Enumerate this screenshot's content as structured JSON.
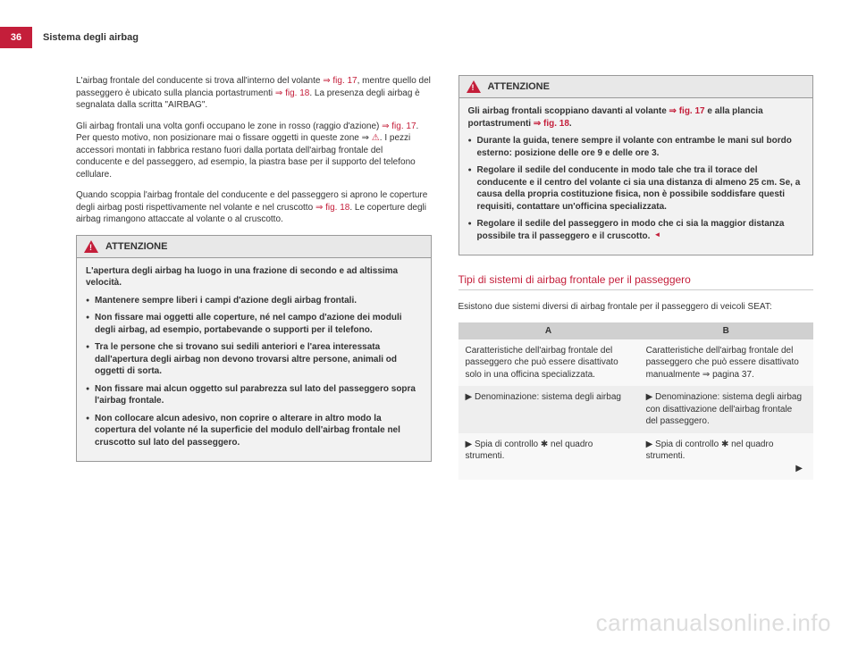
{
  "header": {
    "page_number": "36",
    "chapter_title": "Sistema degli airbag"
  },
  "column_left": {
    "para1_a": "L'airbag frontale del conducente si trova all'interno del volante ",
    "para1_ref1": "⇒ fig. 17",
    "para1_b": ", mentre quello del passeggero è ubicato sulla plancia portastrumenti ",
    "para1_ref2": "⇒ fig. 18",
    "para1_c": ". La presenza degli airbag è segnalata dalla scritta \"AIRBAG\".",
    "para2_a": "Gli airbag frontali una volta gonfi occupano le zone in rosso (raggio d'azione) ",
    "para2_ref1": "⇒ fig. 17",
    "para2_b": ". Per questo motivo, non posizionare mai o fissare oggetti in queste zone ⇒ ",
    "para2_c": ". I pezzi accessori montati in fabbrica restano fuori dalla portata dell'airbag frontale del conducente e del passeggero, ad esempio, la piastra base per il supporto del telefono cellulare.",
    "para3_a": "Quando scoppia l'airbag frontale del conducente e del passeggero si aprono le coperture degli airbag posti rispettivamente nel volante e nel cruscotto ",
    "para3_ref1": "⇒ fig. 18",
    "para3_b": ". Le coperture degli airbag rimangono attaccate al volante o al cruscotto.",
    "warning1": {
      "title": "ATTENZIONE",
      "intro": "L'apertura degli airbag ha luogo in una frazione di secondo e ad altissima velocità.",
      "bullets": [
        "Mantenere sempre liberi i campi d'azione degli airbag frontali.",
        "Non fissare mai oggetti alle coperture, né nel campo d'azione dei moduli degli airbag, ad esempio, portabevande o supporti per il telefono.",
        "Tra le persone che si trovano sui sedili anteriori e l'area interessata dall'apertura degli airbag non devono trovarsi altre persone, animali od oggetti di sorta.",
        "Non fissare mai alcun oggetto sul parabrezza sul lato del passeggero sopra l'airbag frontale.",
        "Non collocare alcun adesivo, non coprire o alterare in altro modo la copertura del volante né la superficie del modulo dell'airbag frontale nel cruscotto sul lato del passeggero."
      ]
    }
  },
  "column_right": {
    "warning2": {
      "title": "ATTENZIONE",
      "line1_a": "Gli airbag frontali scoppiano davanti al volante ",
      "line1_ref1": "⇒ fig. 17",
      "line1_b": " e alla plancia portastrumenti ",
      "line1_ref2": "⇒ fig. 18",
      "line1_c": ".",
      "bullets": [
        "Durante la guida, tenere sempre il volante con entrambe le mani sul bordo esterno: posizione delle ore 9 e delle ore 3.",
        "Regolare il sedile del conducente in modo tale che tra il torace del conducente e il centro del volante ci sia una distanza di almeno 25 cm. Se, a causa della propria costituzione fisica, non è possibile soddisfare questi requisiti, contattare un'officina specializzata.",
        "Regolare il sedile del passeggero in modo che ci sia la maggior distanza possibile tra il passeggero e il cruscotto."
      ]
    },
    "section_heading": "Tipi di sistemi di airbag frontale per il passeggero",
    "section_intro": "Esistono due sistemi diversi di airbag frontale per il passeggero di veicoli SEAT:",
    "table": {
      "col_a": "A",
      "col_b": "B",
      "row1_a": "Caratteristiche dell'airbag frontale del passeggero che può essere disattivato solo in una officina specializzata.",
      "row1_b": "Caratteristiche dell'airbag frontale del passeggero che può essere disattivato manualmente ⇒ pagina 37.",
      "row2_a": "▶ Denominazione: sistema degli airbag",
      "row2_b": "▶ Denominazione: sistema degli airbag con disattivazione dell'airbag frontale del passeggero.",
      "row3_a": "▶ Spia di controllo ✱ nel quadro strumenti.",
      "row3_b": "▶ Spia di controllo ✱ nel quadro strumenti."
    }
  },
  "watermark": "carmanualsonline.info"
}
